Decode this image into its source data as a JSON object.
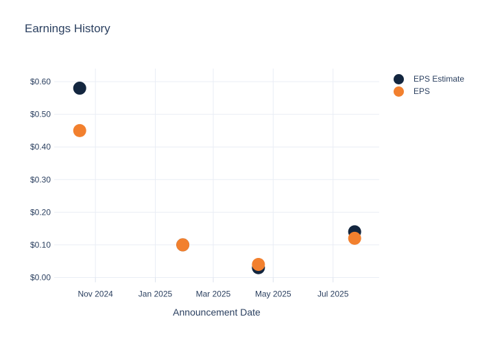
{
  "chart": {
    "title": "Earnings History",
    "x_axis_title": "Announcement Date"
  },
  "chart_data": {
    "type": "scatter",
    "title": "Earnings History",
    "xlabel": "Announcement Date",
    "ylabel": "",
    "grid": true,
    "legend_position": "top-right-outside",
    "marker_size": 19,
    "x_axis": {
      "range": [
        "2024-09-20",
        "2025-08-17"
      ],
      "ticks": [
        {
          "date": "2024-11-01",
          "label": "Nov 2024"
        },
        {
          "date": "2025-01-01",
          "label": "Jan 2025"
        },
        {
          "date": "2025-03-01",
          "label": "Mar 2025"
        },
        {
          "date": "2025-05-01",
          "label": "May 2025"
        },
        {
          "date": "2025-07-01",
          "label": "Jul 2025"
        }
      ]
    },
    "y_axis": {
      "range": [
        0,
        0.64
      ],
      "ticks": [
        {
          "value": 0.0,
          "label": "$0.00"
        },
        {
          "value": 0.1,
          "label": "$0.10"
        },
        {
          "value": 0.2,
          "label": "$0.20"
        },
        {
          "value": 0.3,
          "label": "$0.30"
        },
        {
          "value": 0.4,
          "label": "$0.40"
        },
        {
          "value": 0.5,
          "label": "$0.50"
        },
        {
          "value": 0.6,
          "label": "$0.60"
        }
      ]
    },
    "series": [
      {
        "name": "EPS Estimate",
        "color": "#13263f",
        "points": [
          {
            "x": "2024-10-16",
            "y": 0.58
          },
          {
            "x": "2025-01-29",
            "y": 0.1
          },
          {
            "x": "2025-04-16",
            "y": 0.03
          },
          {
            "x": "2025-07-23",
            "y": 0.14
          }
        ]
      },
      {
        "name": "EPS",
        "color": "#f2802e",
        "points": [
          {
            "x": "2024-10-16",
            "y": 0.45
          },
          {
            "x": "2025-01-29",
            "y": 0.1
          },
          {
            "x": "2025-04-16",
            "y": 0.04
          },
          {
            "x": "2025-07-23",
            "y": 0.12
          }
        ]
      }
    ]
  },
  "colors": {
    "title_text": "#2a3f5f",
    "tick_text": "#2a3f5f",
    "gridline": "#e9edf5",
    "tick_mark": "#dbe1ec",
    "background": "#ffffff"
  }
}
